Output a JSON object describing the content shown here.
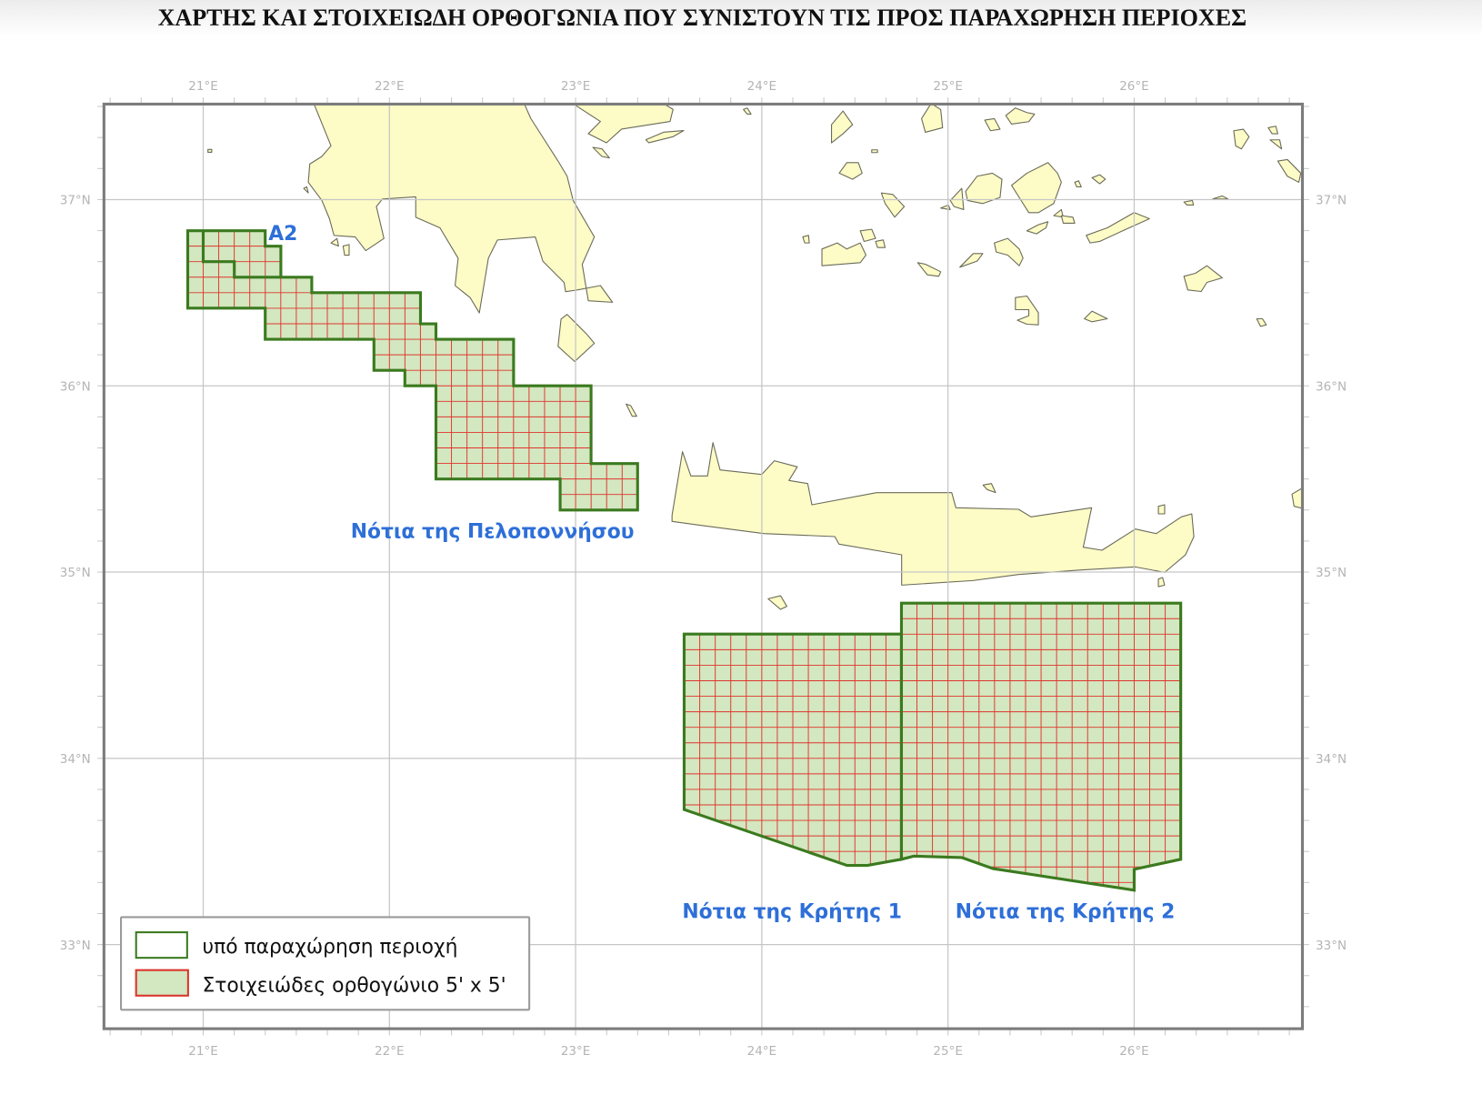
{
  "title": "ΧΑΡΤΗΣ ΚΑΙ ΣΤΟΙΧΕΙΩΔΗ ΟΡΘΟΓΩΝΙΑ ΠΟΥ ΣΥΝΙΣΤΟΥΝ ΤΙΣ ΠΡΟΣ ΠΑΡΑΧΩΡΗΣΗ ΠΕΡΙΟΧΕΣ",
  "axes": {
    "lon_values": [
      21,
      22,
      23,
      24,
      25,
      26
    ],
    "lon_labels": [
      "21°E",
      "22°E",
      "23°E",
      "24°E",
      "25°E",
      "26°E"
    ],
    "lat_values": [
      37,
      36,
      35,
      34,
      33
    ],
    "lat_labels": [
      "37°N",
      "36°N",
      "35°N",
      "34°N",
      "33°N"
    ],
    "extent": {
      "lon_min": 20.467,
      "lon_max": 26.904,
      "lat_min": 32.548,
      "lat_max": 37.513
    },
    "tick_interval_minutes": 10
  },
  "grid_cell_minutes": 5,
  "colors": {
    "land": "#fdfbc6",
    "region_fill": "#d3e7c0",
    "region_outline": "#3b7a1f",
    "cell_lines": "#e0342c",
    "label": "#2e6fd8",
    "graticule": "#c6c6c6",
    "frame": "#7c7c7c"
  },
  "regions": [
    {
      "label": "Νότια της Πελοποννήσου",
      "sub_label": "A2",
      "polygon": [
        [
          20.917,
          36.833
        ],
        [
          21.333,
          36.833
        ],
        [
          21.333,
          36.75
        ],
        [
          21.417,
          36.75
        ],
        [
          21.417,
          36.583
        ],
        [
          21.583,
          36.583
        ],
        [
          21.583,
          36.5
        ],
        [
          22.167,
          36.5
        ],
        [
          22.167,
          36.333
        ],
        [
          22.25,
          36.333
        ],
        [
          22.25,
          36.25
        ],
        [
          22.667,
          36.25
        ],
        [
          22.667,
          36.0
        ],
        [
          23.083,
          36.0
        ],
        [
          23.083,
          35.583
        ],
        [
          23.333,
          35.583
        ],
        [
          23.333,
          35.333
        ],
        [
          22.917,
          35.333
        ],
        [
          22.917,
          35.5
        ],
        [
          22.25,
          35.5
        ],
        [
          22.25,
          36.0
        ],
        [
          22.083,
          36.0
        ],
        [
          22.083,
          36.083
        ],
        [
          21.917,
          36.083
        ],
        [
          21.917,
          36.25
        ],
        [
          21.333,
          36.25
        ],
        [
          21.333,
          36.417
        ],
        [
          20.917,
          36.417
        ]
      ],
      "divider": [
        [
          21.0,
          36.833
        ],
        [
          21.0,
          36.667
        ],
        [
          21.167,
          36.667
        ],
        [
          21.167,
          36.583
        ],
        [
          21.417,
          36.583
        ]
      ]
    },
    {
      "label": "Νότια της Κρήτης 1",
      "polygon": [
        [
          23.583,
          34.667
        ],
        [
          24.75,
          34.667
        ],
        [
          24.75,
          33.458
        ],
        [
          24.567,
          33.425
        ],
        [
          24.458,
          33.425
        ],
        [
          23.583,
          33.725
        ]
      ]
    },
    {
      "label": "Νότια της Κρήτης 2",
      "polygon": [
        [
          24.75,
          34.833
        ],
        [
          26.25,
          34.833
        ],
        [
          26.25,
          33.458
        ],
        [
          26.0,
          33.404
        ],
        [
          26.0,
          33.292
        ],
        [
          25.242,
          33.408
        ],
        [
          25.075,
          33.467
        ],
        [
          24.817,
          33.475
        ],
        [
          24.75,
          33.458
        ]
      ]
    }
  ],
  "legend": {
    "items": [
      {
        "label": "υπό παραχώρηση περιοχή",
        "swatch": "outline"
      },
      {
        "label": "Στοιχειώδες ορθογώνιο 5' x 5'",
        "swatch": "cell"
      }
    ]
  }
}
